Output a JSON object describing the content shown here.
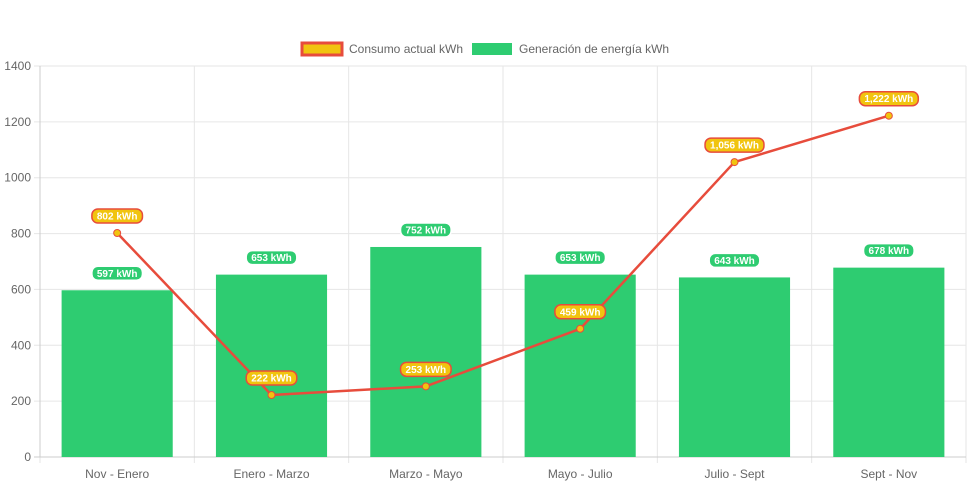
{
  "colors": {
    "generation": "#2ecc71",
    "consumption_line": "#e74c3c",
    "consumption_point": "#f1c40f",
    "grid": "#e6e6e6",
    "axis_text": "#666666"
  },
  "chart_data": {
    "type": "bar",
    "categories": [
      "Nov - Enero",
      "Enero - Marzo",
      "Marzo - Mayo",
      "Mayo - Julio",
      "Julio - Sept",
      "Sept - Nov"
    ],
    "series": [
      {
        "name": "Consumo actual kWh",
        "kind": "line",
        "values": [
          802,
          222,
          253,
          459,
          1056,
          1222
        ],
        "labels": [
          "802 kWh",
          "222 kWh",
          "253 kWh",
          "459 kWh",
          "1,056 kWh",
          "1,222 kWh"
        ]
      },
      {
        "name": "Generación de energía kWh",
        "kind": "bar",
        "values": [
          597,
          653,
          752,
          653,
          643,
          678
        ],
        "labels": [
          "597 kWh",
          "653 kWh",
          "752 kWh",
          "653 kWh",
          "643 kWh",
          "678 kWh"
        ]
      }
    ],
    "ylim": [
      0,
      1400
    ],
    "yticks": [
      "0",
      "200",
      "400",
      "600",
      "800",
      "1000",
      "1200",
      "1400"
    ],
    "grid": true,
    "legend_position": "top-center",
    "title": "",
    "xlabel": "",
    "ylabel": ""
  }
}
